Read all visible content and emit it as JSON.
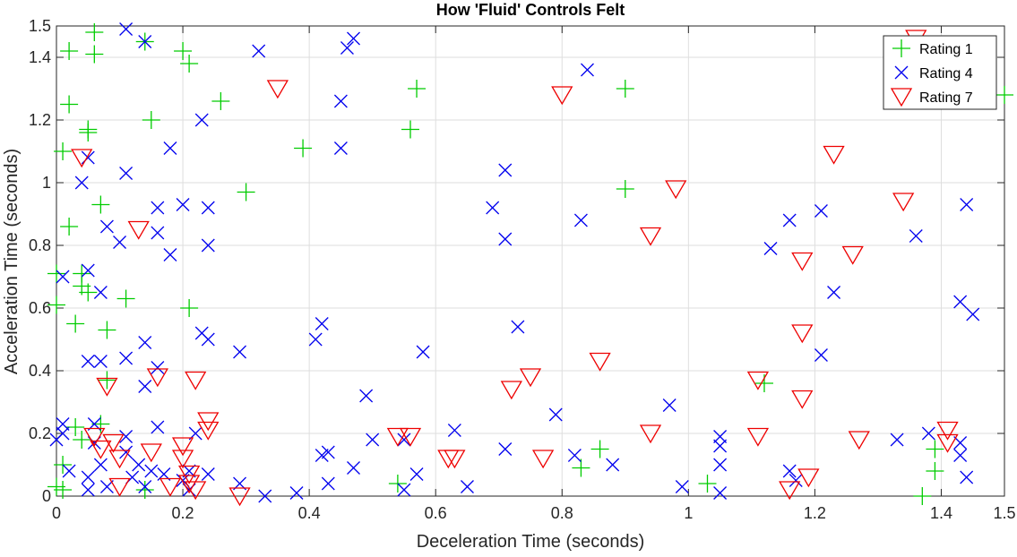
{
  "chart_data": {
    "type": "scatter",
    "title": "How 'Fluid' Controls Felt",
    "xlabel": "Deceleration Time (seconds)",
    "ylabel": "Acceleration Time (seconds)",
    "xlim": [
      0,
      1.5
    ],
    "ylim": [
      0,
      1.5
    ],
    "xticks": [
      0,
      0.2,
      0.4,
      0.6,
      0.8,
      1,
      1.2,
      1.4,
      1.5
    ],
    "xtick_labels": [
      "0",
      "0.2",
      "0.4",
      "0.6",
      "0.8",
      "1",
      "1.2",
      "1.4",
      "1.5"
    ],
    "yticks": [
      0,
      0.2,
      0.4,
      0.6,
      0.8,
      1,
      1.2,
      1.4,
      1.5
    ],
    "ytick_labels": [
      "0",
      "0.2",
      "0.4",
      "0.6",
      "0.8",
      "1",
      "1.2",
      "1.4",
      "1.5"
    ],
    "grid": true,
    "legend_position": "top-right",
    "series": [
      {
        "name": "Rating 1",
        "marker": "plus",
        "color": "#00cc00",
        "points": [
          [
            0.06,
            1.48
          ],
          [
            0.02,
            1.42
          ],
          [
            0.06,
            1.41
          ],
          [
            0.14,
            1.45
          ],
          [
            0.2,
            1.42
          ],
          [
            0.21,
            1.38
          ],
          [
            0.02,
            1.25
          ],
          [
            0.26,
            1.26
          ],
          [
            0.05,
            1.17
          ],
          [
            0.05,
            1.16
          ],
          [
            0.15,
            1.2
          ],
          [
            0.57,
            1.3
          ],
          [
            0.9,
            1.3
          ],
          [
            0.56,
            1.17
          ],
          [
            0.01,
            1.1
          ],
          [
            0.39,
            1.11
          ],
          [
            1.5,
            1.28
          ],
          [
            0.3,
            0.97
          ],
          [
            0.9,
            0.98
          ],
          [
            0.07,
            0.93
          ],
          [
            0.02,
            0.86
          ],
          [
            0.0,
            0.71
          ],
          [
            0.04,
            0.71
          ],
          [
            0.04,
            0.67
          ],
          [
            0.05,
            0.65
          ],
          [
            0.11,
            0.63
          ],
          [
            0.0,
            0.61
          ],
          [
            0.21,
            0.6
          ],
          [
            0.03,
            0.55
          ],
          [
            0.08,
            0.53
          ],
          [
            0.08,
            0.37
          ],
          [
            1.12,
            0.36
          ],
          [
            0.03,
            0.22
          ],
          [
            0.07,
            0.23
          ],
          [
            0.04,
            0.18
          ],
          [
            0.01,
            0.1
          ],
          [
            0.0,
            0.03
          ],
          [
            0.01,
            0.02
          ],
          [
            0.14,
            0.02
          ],
          [
            0.54,
            0.04
          ],
          [
            0.83,
            0.09
          ],
          [
            0.86,
            0.15
          ],
          [
            1.03,
            0.04
          ],
          [
            1.37,
            0.0
          ],
          [
            1.39,
            0.08
          ],
          [
            1.39,
            0.15
          ]
        ]
      },
      {
        "name": "Rating 4",
        "marker": "x",
        "color": "#0000ee",
        "points": [
          [
            0.11,
            1.49
          ],
          [
            0.14,
            1.45
          ],
          [
            0.47,
            1.46
          ],
          [
            0.46,
            1.43
          ],
          [
            0.32,
            1.42
          ],
          [
            0.84,
            1.36
          ],
          [
            0.23,
            1.2
          ],
          [
            0.45,
            1.26
          ],
          [
            0.18,
            1.11
          ],
          [
            0.45,
            1.11
          ],
          [
            0.05,
            1.08
          ],
          [
            0.04,
            1.0
          ],
          [
            0.11,
            1.03
          ],
          [
            0.71,
            1.04
          ],
          [
            0.2,
            0.93
          ],
          [
            0.24,
            0.92
          ],
          [
            0.16,
            0.92
          ],
          [
            0.69,
            0.92
          ],
          [
            0.83,
            0.88
          ],
          [
            0.08,
            0.86
          ],
          [
            0.1,
            0.81
          ],
          [
            0.16,
            0.84
          ],
          [
            0.71,
            0.82
          ],
          [
            0.24,
            0.8
          ],
          [
            0.18,
            0.77
          ],
          [
            0.05,
            0.72
          ],
          [
            0.01,
            0.7
          ],
          [
            0.07,
            0.65
          ],
          [
            1.13,
            0.79
          ],
          [
            1.16,
            0.88
          ],
          [
            1.21,
            0.91
          ],
          [
            1.23,
            0.65
          ],
          [
            1.36,
            0.83
          ],
          [
            1.44,
            0.93
          ],
          [
            1.43,
            0.62
          ],
          [
            1.45,
            0.58
          ],
          [
            0.24,
            0.5
          ],
          [
            0.23,
            0.52
          ],
          [
            0.42,
            0.55
          ],
          [
            0.41,
            0.5
          ],
          [
            0.14,
            0.49
          ],
          [
            0.58,
            0.46
          ],
          [
            0.73,
            0.54
          ],
          [
            0.29,
            0.46
          ],
          [
            0.11,
            0.44
          ],
          [
            0.16,
            0.41
          ],
          [
            0.05,
            0.43
          ],
          [
            0.07,
            0.43
          ],
          [
            0.14,
            0.35
          ],
          [
            0.49,
            0.32
          ],
          [
            1.21,
            0.45
          ],
          [
            0.97,
            0.29
          ],
          [
            0.79,
            0.26
          ],
          [
            0.63,
            0.21
          ],
          [
            0.01,
            0.23
          ],
          [
            0.01,
            0.2
          ],
          [
            0.0,
            0.18
          ],
          [
            0.06,
            0.23
          ],
          [
            0.11,
            0.19
          ],
          [
            0.16,
            0.22
          ],
          [
            0.22,
            0.2
          ],
          [
            0.42,
            0.13
          ],
          [
            0.43,
            0.14
          ],
          [
            0.5,
            0.18
          ],
          [
            0.55,
            0.18
          ],
          [
            0.71,
            0.15
          ],
          [
            0.82,
            0.13
          ],
          [
            0.88,
            0.1
          ],
          [
            1.05,
            0.19
          ],
          [
            1.05,
            0.16
          ],
          [
            1.33,
            0.18
          ],
          [
            1.38,
            0.2
          ],
          [
            1.43,
            0.17
          ],
          [
            1.43,
            0.13
          ],
          [
            1.44,
            0.06
          ],
          [
            1.05,
            0.1
          ],
          [
            1.17,
            0.05
          ],
          [
            1.16,
            0.08
          ],
          [
            0.02,
            0.08
          ],
          [
            0.05,
            0.06
          ],
          [
            0.07,
            0.1
          ],
          [
            0.11,
            0.14
          ],
          [
            0.13,
            0.1
          ],
          [
            0.15,
            0.08
          ],
          [
            0.17,
            0.07
          ],
          [
            0.2,
            0.05
          ],
          [
            0.21,
            0.08
          ],
          [
            0.24,
            0.07
          ],
          [
            0.08,
            0.03
          ],
          [
            0.05,
            0.02
          ],
          [
            0.12,
            0.06
          ],
          [
            0.14,
            0.03
          ],
          [
            0.21,
            0.02
          ],
          [
            0.29,
            0.04
          ],
          [
            0.33,
            0.0
          ],
          [
            0.38,
            0.01
          ],
          [
            0.43,
            0.04
          ],
          [
            0.47,
            0.09
          ],
          [
            0.55,
            0.02
          ],
          [
            0.57,
            0.07
          ],
          [
            0.65,
            0.03
          ],
          [
            0.99,
            0.03
          ],
          [
            1.05,
            0.01
          ],
          [
            0.06,
            0.17
          ]
        ]
      },
      {
        "name": "Rating 7",
        "marker": "triangle-down",
        "color": "#ee0000",
        "points": [
          [
            1.36,
            1.46
          ],
          [
            0.35,
            1.3
          ],
          [
            0.8,
            1.28
          ],
          [
            0.04,
            1.08
          ],
          [
            0.98,
            0.98
          ],
          [
            1.23,
            1.09
          ],
          [
            1.34,
            0.94
          ],
          [
            0.13,
            0.85
          ],
          [
            0.94,
            0.83
          ],
          [
            1.26,
            0.77
          ],
          [
            1.18,
            0.75
          ],
          [
            1.18,
            0.52
          ],
          [
            0.86,
            0.43
          ],
          [
            0.08,
            0.35
          ],
          [
            0.16,
            0.38
          ],
          [
            0.22,
            0.37
          ],
          [
            0.72,
            0.34
          ],
          [
            0.75,
            0.38
          ],
          [
            1.11,
            0.37
          ],
          [
            1.18,
            0.31
          ],
          [
            0.24,
            0.24
          ],
          [
            0.24,
            0.21
          ],
          [
            0.2,
            0.16
          ],
          [
            0.09,
            0.17
          ],
          [
            0.06,
            0.19
          ],
          [
            0.07,
            0.15
          ],
          [
            0.1,
            0.12
          ],
          [
            0.15,
            0.14
          ],
          [
            0.2,
            0.12
          ],
          [
            0.21,
            0.07
          ],
          [
            0.54,
            0.19
          ],
          [
            0.56,
            0.19
          ],
          [
            0.62,
            0.12
          ],
          [
            0.63,
            0.12
          ],
          [
            0.77,
            0.12
          ],
          [
            0.94,
            0.2
          ],
          [
            1.11,
            0.19
          ],
          [
            1.27,
            0.18
          ],
          [
            1.19,
            0.06
          ],
          [
            1.16,
            0.02
          ],
          [
            1.41,
            0.17
          ],
          [
            1.41,
            0.21
          ],
          [
            0.29,
            0.0
          ],
          [
            0.22,
            0.02
          ],
          [
            0.21,
            0.04
          ],
          [
            0.18,
            0.03
          ],
          [
            0.1,
            0.03
          ]
        ]
      }
    ]
  }
}
